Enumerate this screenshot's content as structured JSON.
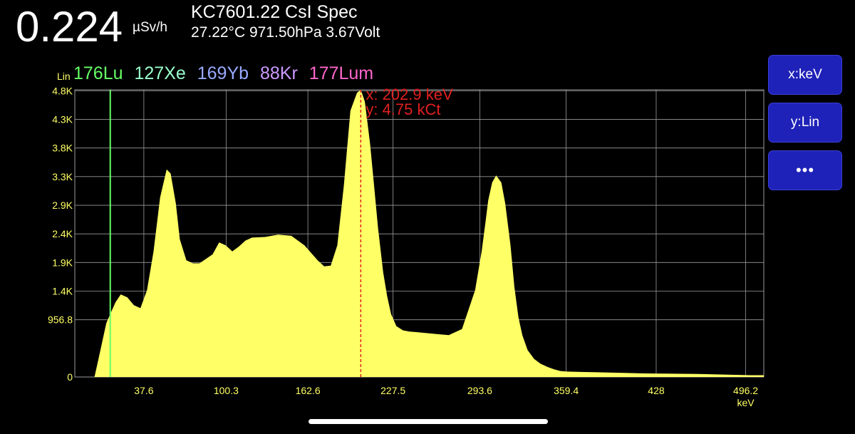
{
  "header": {
    "dose_value": "0.224",
    "dose_unit": "µSv/h",
    "device_title": "KC7601.22 CsI Spec",
    "environment": "27.22°C 971.50hPa 3.67Volt"
  },
  "controls": {
    "x_button": "x:keV",
    "y_button": "y:Lin",
    "more_button": "•••"
  },
  "colors": {
    "background": "#000000",
    "spectrum_fill": "#ffff66",
    "grid": "#9a9a9a",
    "axis_text": "#ffff66",
    "cursor": "#e02020",
    "marker_lu": "#66ff66",
    "button": "#1f22b8"
  },
  "chart_data": {
    "type": "area",
    "scale_label": "Lin",
    "x_unit": "keV",
    "x_range": [
      -15,
      510
    ],
    "y_range": [
      0,
      4800
    ],
    "y_ticks": [
      {
        "value": 0,
        "label": "0"
      },
      {
        "value": 956.8,
        "label": "956.8"
      },
      {
        "value": 1435,
        "label": "1.4K"
      },
      {
        "value": 1914,
        "label": "1.9K"
      },
      {
        "value": 2392,
        "label": "2.4K"
      },
      {
        "value": 2870,
        "label": "2.9K"
      },
      {
        "value": 3349,
        "label": "3.3K"
      },
      {
        "value": 3827,
        "label": "3.8K"
      },
      {
        "value": 4305,
        "label": "4.3K"
      },
      {
        "value": 4784,
        "label": "4.8K"
      }
    ],
    "x_ticks": [
      {
        "value": 37.6,
        "label": "37.6"
      },
      {
        "value": 100.3,
        "label": "100.3"
      },
      {
        "value": 162.6,
        "label": "162.6"
      },
      {
        "value": 227.5,
        "label": "227.5"
      },
      {
        "value": 293.6,
        "label": "293.6"
      },
      {
        "value": 359.4,
        "label": "359.4"
      },
      {
        "value": 428,
        "label": "428"
      },
      {
        "value": 496.2,
        "label": "496.2"
      }
    ],
    "isotope_legend": [
      {
        "label": "176Lu",
        "color": "#66ff66"
      },
      {
        "label": "127Xe",
        "color": "#99ffcc"
      },
      {
        "label": "169Yb",
        "color": "#99aaff"
      },
      {
        "label": "88Kr",
        "color": "#cc99ff"
      },
      {
        "label": "177Lum",
        "color": "#ff66cc"
      }
    ],
    "marker_line": {
      "energy": 12,
      "color": "#66ff66"
    },
    "cursor": {
      "x": 202.9,
      "x_label": "x: 202.9 keV",
      "y_label": "y: 4.75 kCt"
    },
    "spectrum": {
      "x": [
        -15,
        0,
        3,
        6,
        9,
        12,
        16,
        20,
        25,
        30,
        35,
        40,
        45,
        50,
        55,
        58,
        62,
        65,
        70,
        75,
        80,
        90,
        95,
        100,
        105,
        110,
        115,
        120,
        130,
        140,
        150,
        160,
        170,
        175,
        180,
        185,
        190,
        195,
        200,
        203,
        206,
        210,
        213,
        216,
        220,
        223,
        226,
        230,
        235,
        240,
        245,
        250,
        255,
        260,
        270,
        280,
        290,
        295,
        298,
        300,
        303,
        306,
        310,
        313,
        317,
        320,
        323,
        326,
        330,
        335,
        340,
        345,
        350,
        355,
        360,
        370,
        380,
        400,
        420,
        440,
        460,
        480,
        500,
        510
      ],
      "y": [
        0,
        0,
        300,
        600,
        900,
        1050,
        1250,
        1380,
        1330,
        1200,
        1150,
        1450,
        2100,
        3000,
        3470,
        3400,
        2900,
        2300,
        1950,
        1900,
        1900,
        2050,
        2250,
        2200,
        2100,
        2180,
        2280,
        2330,
        2340,
        2380,
        2360,
        2200,
        1950,
        1850,
        1860,
        2200,
        3200,
        4450,
        4750,
        4800,
        4600,
        3900,
        3200,
        2500,
        1750,
        1350,
        1050,
        850,
        780,
        760,
        750,
        740,
        730,
        720,
        700,
        800,
        1450,
        2100,
        2600,
        2950,
        3250,
        3370,
        3250,
        2900,
        2200,
        1500,
        1000,
        700,
        450,
        300,
        220,
        170,
        130,
        100,
        90,
        85,
        80,
        70,
        60,
        55,
        50,
        40,
        30,
        30
      ]
    }
  }
}
